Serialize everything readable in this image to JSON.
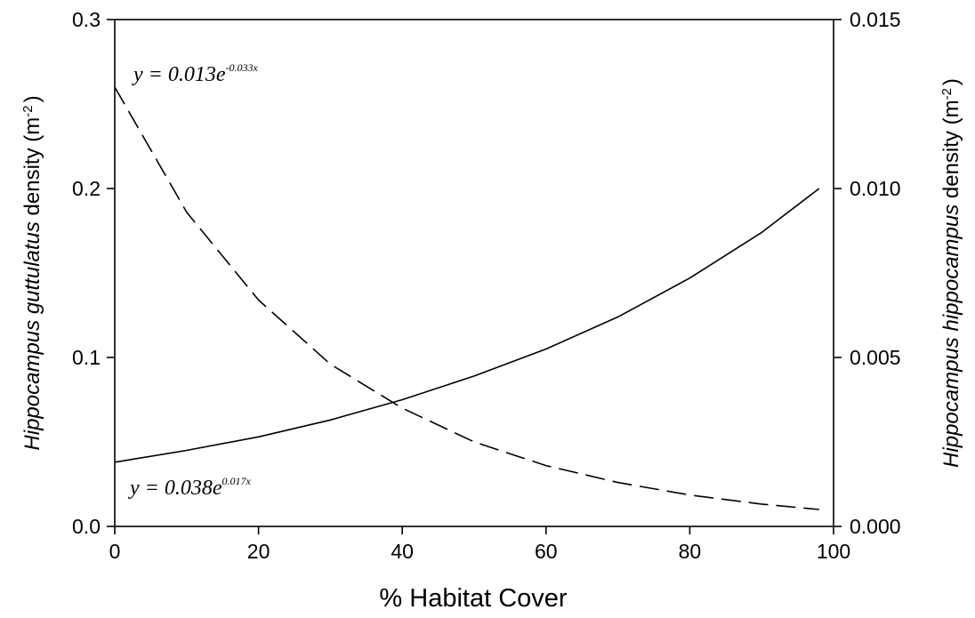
{
  "chart_data": {
    "type": "line",
    "title": "",
    "xlabel": "% Habitat Cover",
    "ylabel_left": {
      "italic": "Hippocampus guttulatus",
      "normal": " density (m",
      "superscript": "-2",
      "close": ")"
    },
    "ylabel_right": {
      "italic": "Hippocampus hippocampus",
      "normal": " density (m",
      "superscript": "-2",
      "close": ")"
    },
    "xlim": [
      0,
      100
    ],
    "ylim_left": [
      0,
      0.3
    ],
    "ylim_right": [
      0,
      0.015
    ],
    "x_ticks": [
      "0",
      "20",
      "40",
      "60",
      "80",
      "100"
    ],
    "y_left_ticks": [
      "0.0",
      "0.1",
      "0.2",
      "0.3"
    ],
    "y_right_ticks": [
      "0.000",
      "0.005",
      "0.010",
      "0.015"
    ],
    "grid": false,
    "series": [
      {
        "axis": "left",
        "style": "solid",
        "x": [
          0,
          10,
          20,
          30,
          40,
          50,
          60,
          70,
          80,
          90,
          98
        ],
        "y": [
          0.038,
          0.045,
          0.053,
          0.063,
          0.075,
          0.089,
          0.105,
          0.124,
          0.147,
          0.174,
          0.2
        ],
        "equation": {
          "prefix": "y = 0.038e",
          "exponent": "0.017x"
        }
      },
      {
        "axis": "right",
        "style": "dashed",
        "x": [
          0,
          10,
          20,
          30,
          40,
          50,
          60,
          70,
          80,
          90,
          98
        ],
        "y": [
          0.013,
          0.0093,
          0.0067,
          0.0048,
          0.0035,
          0.0025,
          0.0018,
          0.0013,
          0.00093,
          0.00066,
          0.0005
        ],
        "equation": {
          "prefix": "y = 0.013e",
          "exponent": "-0.033x"
        }
      }
    ]
  }
}
